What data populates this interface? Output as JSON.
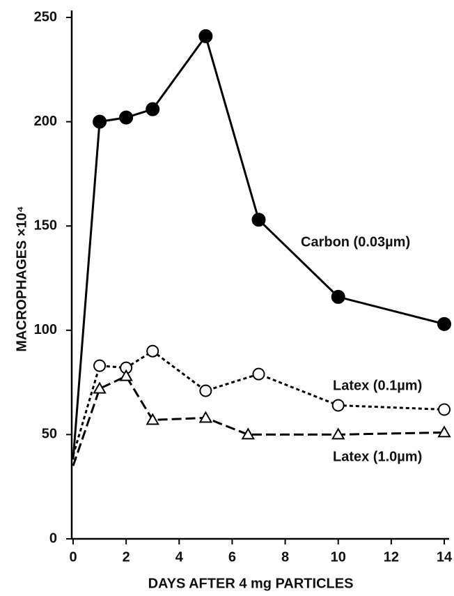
{
  "chart_data": {
    "type": "line",
    "xlabel": "DAYS AFTER 4 mg PARTICLES",
    "ylabel": "MACROPHAGES ×10⁴",
    "xlim": [
      0,
      14
    ],
    "xticks": [
      0,
      2,
      4,
      6,
      8,
      10,
      12,
      14
    ],
    "ylim": [
      0,
      250
    ],
    "yticks": [
      0,
      50,
      100,
      150,
      200,
      250
    ],
    "series": [
      {
        "name": "Carbon (0.03µm)",
        "color": "#000000",
        "marker": "filled-circle",
        "dash": "solid",
        "x": [
          0,
          1,
          2,
          3,
          5,
          7,
          10,
          14
        ],
        "values": [
          38,
          200,
          202,
          206,
          241,
          153,
          116,
          103
        ]
      },
      {
        "name": "Latex (0.1µm)",
        "color": "#000000",
        "marker": "open-circle",
        "dash": "dotted",
        "x": [
          0,
          1,
          2,
          3,
          5,
          7,
          10,
          14
        ],
        "values": [
          40,
          83,
          82,
          90,
          71,
          79,
          64,
          62
        ]
      },
      {
        "name": "Latex (1.0µm)",
        "color": "#000000",
        "marker": "open-triangle",
        "dash": "dashed",
        "x": [
          0,
          1,
          2,
          3,
          5,
          6.6,
          10,
          14
        ],
        "values": [
          35,
          72,
          78,
          57,
          58,
          50,
          50,
          51
        ]
      }
    ]
  }
}
